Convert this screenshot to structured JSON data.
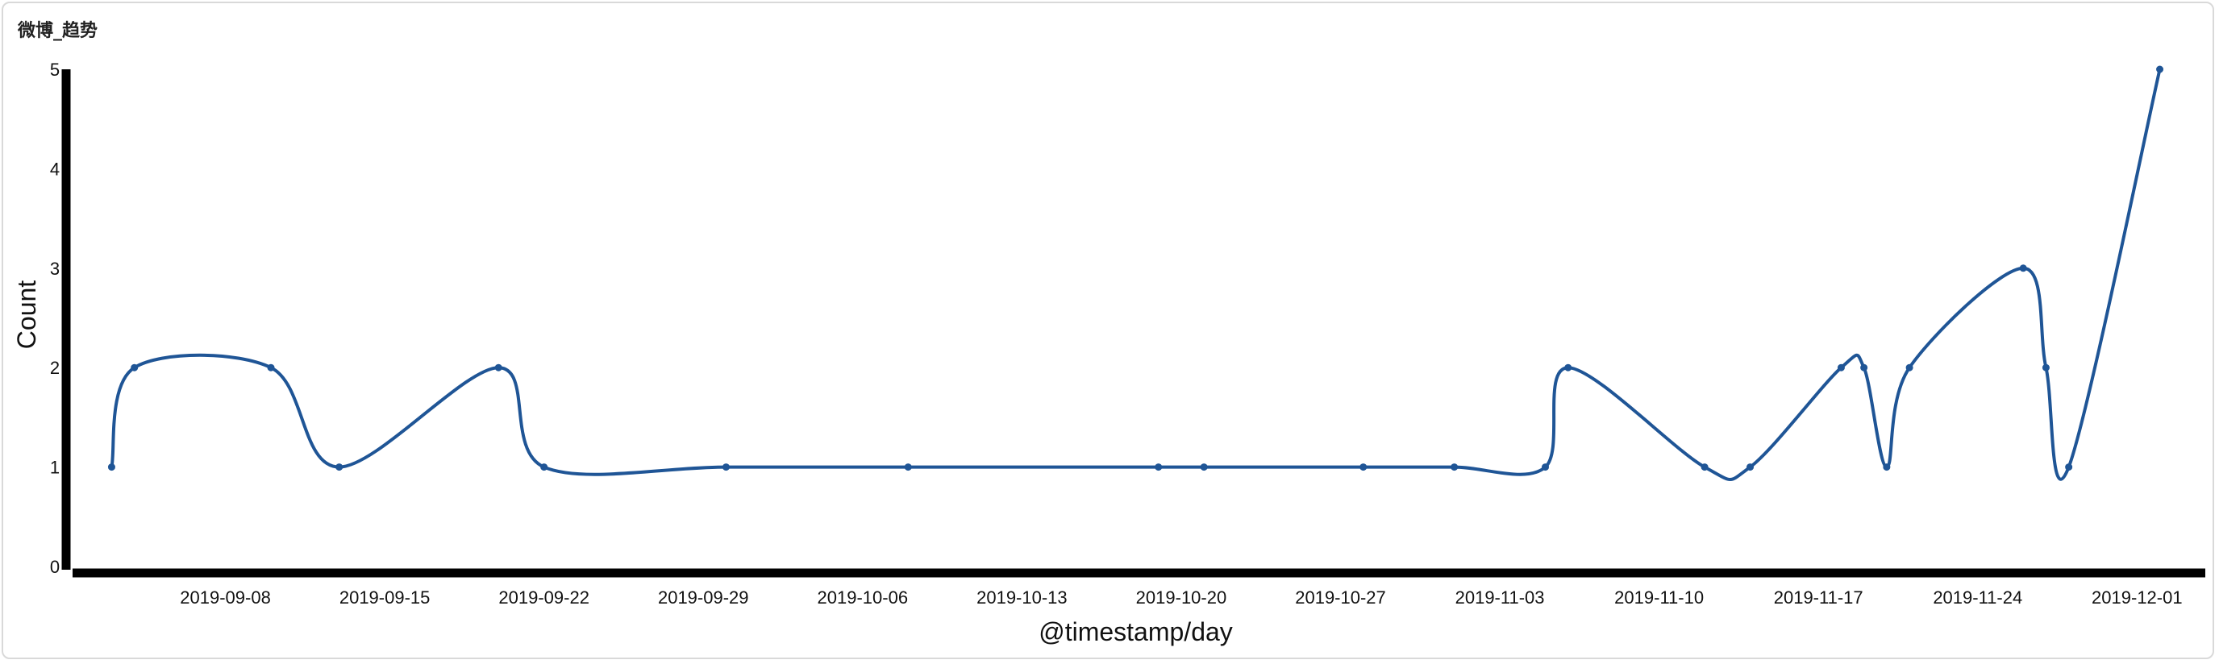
{
  "panel": {
    "title": "微博_趋势"
  },
  "chart_data": {
    "type": "line",
    "title": "",
    "xlabel": "@timestamp/day",
    "ylabel": "Count",
    "x_ticks": [
      "2019-09-08",
      "2019-09-15",
      "2019-09-22",
      "2019-09-29",
      "2019-10-06",
      "2019-10-13",
      "2019-10-20",
      "2019-10-27",
      "2019-11-03",
      "2019-11-10",
      "2019-11-17",
      "2019-11-24",
      "2019-12-01"
    ],
    "y_ticks": [
      0,
      1,
      2,
      3,
      4,
      5
    ],
    "ylim": [
      0,
      5
    ],
    "xlim": [
      "2019-09-01",
      "2019-12-04"
    ],
    "grid": false,
    "line_color": "#1f5596",
    "series": [
      {
        "x": [
          "2019-09-03",
          "2019-09-04",
          "2019-09-10",
          "2019-09-13",
          "2019-09-20",
          "2019-09-22",
          "2019-09-30",
          "2019-10-08",
          "2019-10-19",
          "2019-10-21",
          "2019-10-28",
          "2019-11-01",
          "2019-11-05",
          "2019-11-06",
          "2019-11-12",
          "2019-11-14",
          "2019-11-18",
          "2019-11-19",
          "2019-11-20",
          "2019-11-21",
          "2019-11-26",
          "2019-11-27",
          "2019-11-28",
          "2019-12-02"
        ],
        "values": [
          1,
          2,
          2,
          1,
          2,
          1,
          1,
          1,
          1,
          1,
          1,
          1,
          1,
          2,
          1,
          1,
          2,
          2,
          1,
          2,
          3,
          2,
          1,
          5
        ]
      }
    ]
  }
}
